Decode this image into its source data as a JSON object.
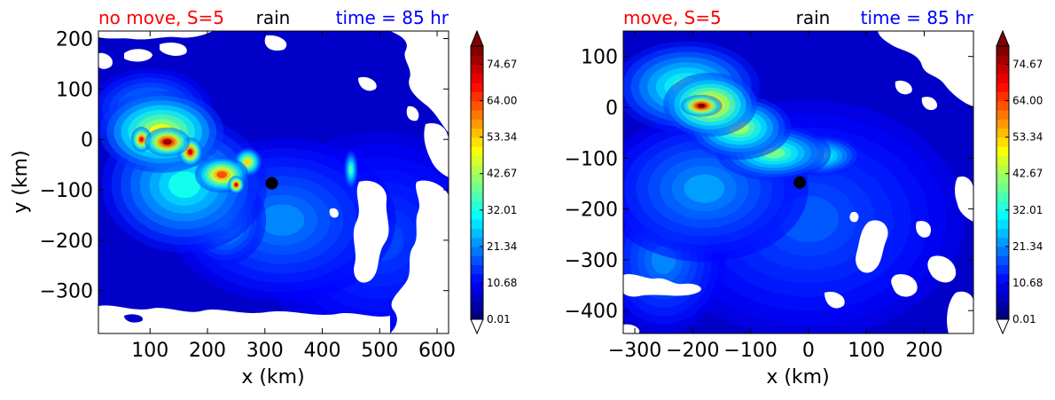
{
  "panels": [
    {
      "title_left": "no move, S=5",
      "title_center": "rain",
      "title_right": "time = 85 hr",
      "title_left_color": "#ff0000",
      "title_center_color": "#000000",
      "title_right_color": "#0000ff"
    },
    {
      "title_left": "move, S=5",
      "title_center": "rain",
      "title_right": "time = 85 hr",
      "title_left_color": "#ff0000",
      "title_center_color": "#000000",
      "title_right_color": "#0000ff"
    }
  ],
  "chart_data": [
    {
      "type": "heatmap",
      "subtype": "filled-contour",
      "xlabel": "x (km)",
      "ylabel": "y (km)",
      "xlim": [
        10,
        620
      ],
      "ylim": [
        -385,
        215
      ],
      "xticks": [
        100,
        200,
        300,
        400,
        500,
        600
      ],
      "yticks": [
        -300,
        -200,
        -100,
        0,
        100,
        200
      ],
      "colormap": "jet",
      "color_range": [
        0.01,
        80
      ],
      "colorbar_ticks": [
        "0.01",
        "10.68",
        "21.34",
        "32.01",
        "42.67",
        "53.34",
        "64.00",
        "74.67"
      ],
      "colorbar_extend": "both",
      "center_marker": {
        "x": 312,
        "y": -87
      },
      "blobs": [
        {
          "x": 130,
          "y": -5,
          "value": 78,
          "sx": 22,
          "sy": 16
        },
        {
          "x": 85,
          "y": 0,
          "value": 70,
          "sx": 10,
          "sy": 14
        },
        {
          "x": 170,
          "y": -25,
          "value": 72,
          "sx": 12,
          "sy": 16
        },
        {
          "x": 120,
          "y": 15,
          "value": 45,
          "sx": 60,
          "sy": 45
        },
        {
          "x": 225,
          "y": -70,
          "value": 62,
          "sx": 26,
          "sy": 20
        },
        {
          "x": 250,
          "y": -90,
          "value": 72,
          "sx": 8,
          "sy": 10
        },
        {
          "x": 270,
          "y": -45,
          "value": 50,
          "sx": 14,
          "sy": 16
        },
        {
          "x": 160,
          "y": -90,
          "value": 26,
          "sx": 80,
          "sy": 75
        },
        {
          "x": 230,
          "y": -160,
          "value": 22,
          "sx": 40,
          "sy": 50
        },
        {
          "x": 100,
          "y": 60,
          "value": 18,
          "sx": 60,
          "sy": 45
        },
        {
          "x": 450,
          "y": -60,
          "value": 32,
          "sx": 7,
          "sy": 22
        },
        {
          "x": 330,
          "y": -160,
          "value": 14,
          "sx": 110,
          "sy": 90
        },
        {
          "x": 500,
          "y": -200,
          "value": 8,
          "sx": 120,
          "sy": 120
        }
      ]
    },
    {
      "type": "heatmap",
      "subtype": "filled-contour",
      "xlabel": "x (km)",
      "ylabel": "",
      "xlim": [
        -320,
        285
      ],
      "ylim": [
        -445,
        150
      ],
      "xticks": [
        -300,
        -200,
        -100,
        0,
        100,
        200
      ],
      "yticks": [
        -400,
        -300,
        -200,
        -100,
        0,
        100
      ],
      "colormap": "jet",
      "color_range": [
        0.01,
        80
      ],
      "colorbar_ticks": [
        "0.01",
        "10.68",
        "21.34",
        "32.01",
        "42.67",
        "53.34",
        "64.00",
        "74.67"
      ],
      "colorbar_extend": "both",
      "center_marker": {
        "x": -15,
        "y": -148
      },
      "blobs": [
        {
          "x": -185,
          "y": 3,
          "value": 80,
          "sx": 20,
          "sy": 12
        },
        {
          "x": -170,
          "y": 5,
          "value": 55,
          "sx": 45,
          "sy": 35
        },
        {
          "x": -210,
          "y": 40,
          "value": 30,
          "sx": 70,
          "sy": 50
        },
        {
          "x": -120,
          "y": -40,
          "value": 38,
          "sx": 50,
          "sy": 35
        },
        {
          "x": -60,
          "y": -90,
          "value": 34,
          "sx": 55,
          "sy": 30
        },
        {
          "x": 20,
          "y": -95,
          "value": 30,
          "sx": 40,
          "sy": 22
        },
        {
          "x": -180,
          "y": -160,
          "value": 16,
          "sx": 100,
          "sy": 80
        },
        {
          "x": -250,
          "y": -300,
          "value": 14,
          "sx": 60,
          "sy": 80
        },
        {
          "x": 0,
          "y": -220,
          "value": 10,
          "sx": 150,
          "sy": 130
        }
      ]
    }
  ]
}
